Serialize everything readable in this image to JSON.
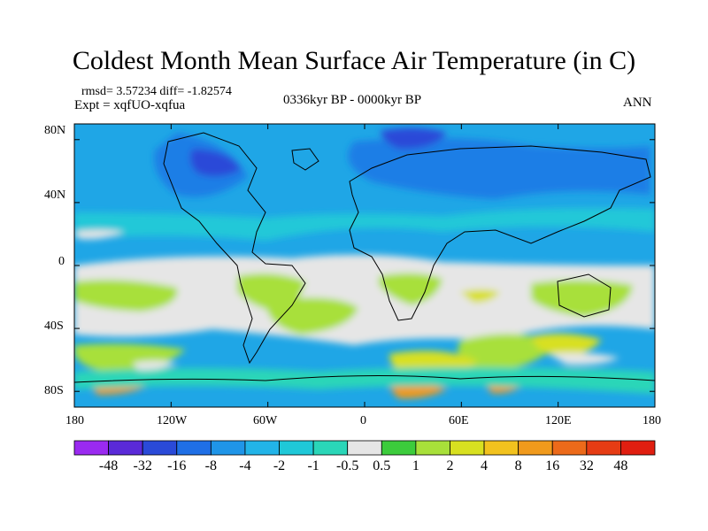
{
  "title": "Coldest Month Mean Surface Air Temperature (in C)",
  "stats": {
    "rmsd_line": "rmsd= 3.57234 diff= -1.82574",
    "expt_line": "Expt = xqfUO-xqfua"
  },
  "period": "0336kyr BP - 0000kyr BP",
  "season": "ANN",
  "map": {
    "lat_labels": [
      "80N",
      "40N",
      "0",
      "40S",
      "80S"
    ],
    "lon_labels": [
      "180",
      "120W",
      "60W",
      "0",
      "60E",
      "120E",
      "180"
    ],
    "lat_values": [
      80,
      40,
      0,
      -40,
      -80
    ],
    "lon_values": [
      -180,
      -120,
      -60,
      0,
      60,
      120,
      180
    ]
  },
  "colorbar": {
    "labels": [
      "-48",
      "-32",
      "-16",
      "-8",
      "-4",
      "-2",
      "-1",
      "-0.5",
      "0.5",
      "1",
      "2",
      "4",
      "8",
      "16",
      "32",
      "48"
    ],
    "colors": [
      "#9a2af0",
      "#5a2ad8",
      "#2a4ad8",
      "#1f6fe6",
      "#1f95e8",
      "#22b4e8",
      "#1fc8d8",
      "#2ad6b8",
      "#e6e6e6",
      "#3ccc3c",
      "#a8e03a",
      "#d8e020",
      "#f2c21e",
      "#f09a1c",
      "#ec6a1a",
      "#e63c14",
      "#e01e10"
    ]
  },
  "field_colors": {
    "ocean_base": "#1fa6e6",
    "land_north": "#1f7ee6",
    "ice_north": "#2a4ad8",
    "tropical_white": "#e6e6e6",
    "mild_green": "#a8e03a",
    "warm_yellow": "#d8e020",
    "warm_orange": "#f09a1c",
    "cyan": "#22c8d8",
    "teal": "#2ad6b8",
    "coast": "#000000"
  }
}
